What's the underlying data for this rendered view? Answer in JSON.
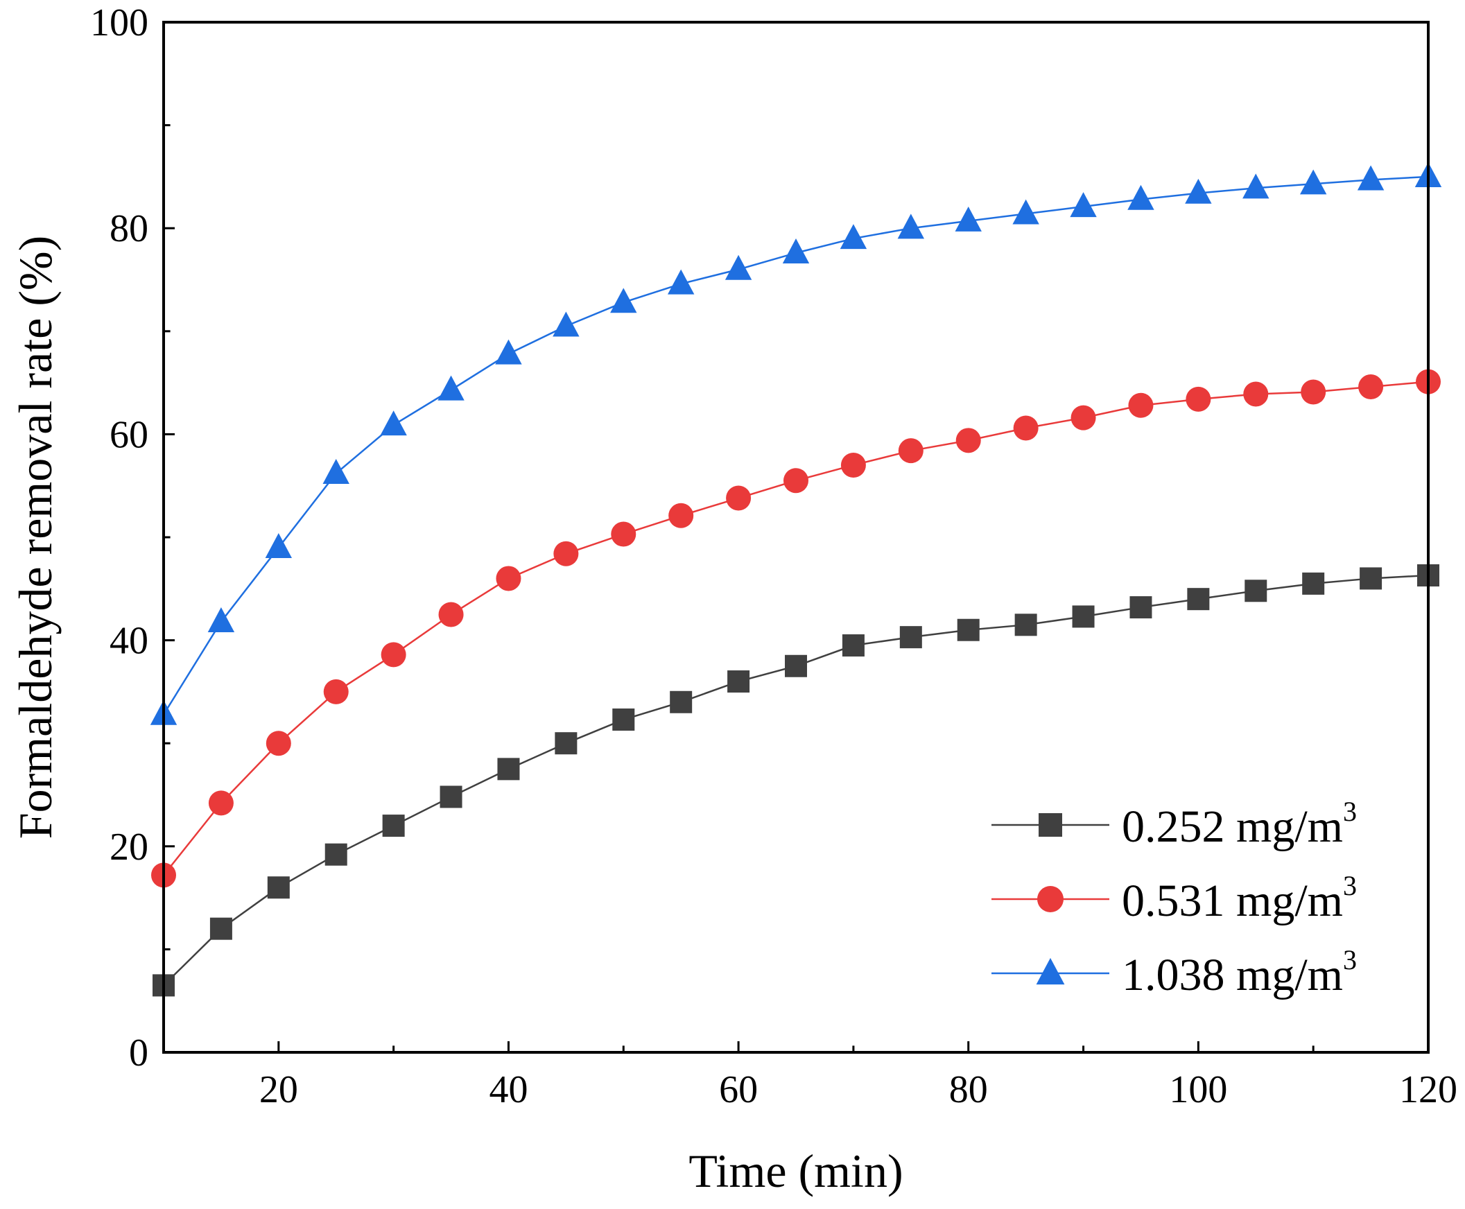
{
  "chart_data": {
    "type": "line",
    "title": "",
    "xlabel": "Time (min)",
    "ylabel": "Formaldehyde removal rate (%)",
    "xlim": [
      10,
      120
    ],
    "ylim": [
      0,
      100
    ],
    "xticks": [
      20,
      40,
      60,
      80,
      100,
      120
    ],
    "yticks": [
      0,
      20,
      40,
      60,
      80,
      100
    ],
    "grid": false,
    "legend_position": "bottom-right",
    "x": [
      10,
      15,
      20,
      25,
      30,
      35,
      40,
      45,
      50,
      55,
      60,
      65,
      70,
      75,
      80,
      85,
      90,
      95,
      100,
      105,
      110,
      115,
      120
    ],
    "series": [
      {
        "name": "0.252 mg/m",
        "name_sup": "3",
        "marker": "square",
        "color": "#404040",
        "line_color": "#404040",
        "values": [
          6.5,
          12.0,
          16.0,
          19.2,
          22.0,
          24.8,
          27.5,
          30.0,
          32.3,
          34.0,
          36.0,
          37.5,
          39.5,
          40.3,
          41.0,
          41.5,
          42.3,
          43.2,
          44.0,
          44.8,
          45.5,
          46.0,
          46.3
        ]
      },
      {
        "name": "0.531 mg/m",
        "name_sup": "3",
        "marker": "circle",
        "color": "#e93a3a",
        "line_color": "#e93a3a",
        "values": [
          17.2,
          24.2,
          30.0,
          35.0,
          38.6,
          42.5,
          46.0,
          48.4,
          50.3,
          52.1,
          53.8,
          55.5,
          57.0,
          58.4,
          59.4,
          60.6,
          61.6,
          62.8,
          63.4,
          63.9,
          64.1,
          64.6,
          65.1
        ]
      },
      {
        "name": "1.038 mg/m",
        "name_sup": "3",
        "marker": "triangle",
        "color": "#1f6fe0",
        "line_color": "#1f6fe0",
        "values": [
          32.8,
          41.8,
          49.0,
          56.2,
          60.9,
          64.3,
          67.8,
          70.5,
          72.8,
          74.6,
          76.0,
          77.6,
          79.0,
          80.0,
          80.7,
          81.4,
          82.1,
          82.8,
          83.4,
          83.9,
          84.3,
          84.7,
          85.0
        ]
      }
    ]
  }
}
